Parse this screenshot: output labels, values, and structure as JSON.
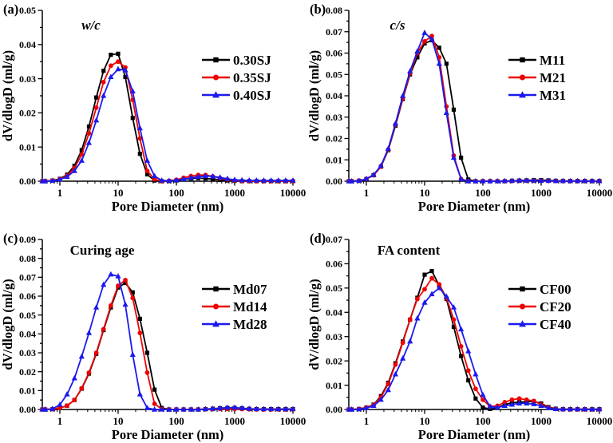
{
  "figure": {
    "background": "#ffffff",
    "xlabel": "Pore Diameter (nm)",
    "ylabel": "dV/dlogD (ml/g)"
  },
  "colors": {
    "series1": "#000000",
    "series2": "#ee0202",
    "series3": "#1a1aee",
    "axis": "#000000"
  },
  "chart_data": [
    {
      "panel_letter": "(a)",
      "type": "line",
      "title": "w/c",
      "title_italic": true,
      "xlabel": "Pore Diameter (nm)",
      "ylabel": "dV/dlogD (ml/g)",
      "xscale": "log",
      "xlim": [
        0.5,
        10000
      ],
      "ylim": [
        0,
        0.05
      ],
      "ytick_step": 0.01,
      "xticks": [
        1,
        10,
        100,
        1000,
        10000
      ],
      "grid": false,
      "legend_position": "right",
      "x": [
        0.5,
        0.56,
        0.75,
        1,
        1.33,
        1.78,
        2.37,
        3.16,
        4.22,
        5.62,
        7.5,
        10,
        13.3,
        17.8,
        23.7,
        31.6,
        42.2,
        56.2,
        75,
        100,
        133,
        178,
        237,
        316,
        422,
        562,
        750,
        1000,
        1334,
        1778,
        2371,
        3162,
        4217,
        5623,
        7499,
        10000
      ],
      "series": [
        {
          "name": "0.30SJ",
          "color": "#000000",
          "marker": "square",
          "y": [
            0,
            0,
            0.0002,
            0.0007,
            0.0019,
            0.0045,
            0.0091,
            0.016,
            0.0245,
            0.0323,
            0.037,
            0.0373,
            0.0305,
            0.0185,
            0.008,
            0.002,
            0.0002,
            0,
            0,
            0.0002,
            0.0005,
            0.0008,
            0.0009,
            0.0008,
            0.0006,
            0.0004,
            0.0002,
            0.0001,
            0,
            0,
            0,
            0,
            0,
            0,
            0,
            0
          ]
        },
        {
          "name": "0.35SJ",
          "color": "#ee0202",
          "marker": "circle",
          "y": [
            0,
            0,
            0.0002,
            0.0006,
            0.0016,
            0.0038,
            0.0078,
            0.014,
            0.0215,
            0.029,
            0.0338,
            0.035,
            0.0333,
            0.0238,
            0.0125,
            0.003,
            0.0006,
            0,
            0.0001,
            0.0004,
            0.001,
            0.0015,
            0.0018,
            0.0018,
            0.0014,
            0.0009,
            0.0005,
            0.0002,
            0.0001,
            0,
            0,
            0,
            0,
            0,
            0,
            0
          ]
        },
        {
          "name": "0.40SJ",
          "color": "#1a1aee",
          "marker": "triangle",
          "y": [
            0,
            0,
            0.0001,
            0.0005,
            0.0013,
            0.003,
            0.006,
            0.0112,
            0.0178,
            0.025,
            0.0305,
            0.0328,
            0.0325,
            0.0263,
            0.0155,
            0.006,
            0.0015,
            0.0002,
            0.0001,
            0.0003,
            0.0006,
            0.001,
            0.0013,
            0.0015,
            0.0014,
            0.0011,
            0.0007,
            0.0004,
            0.0003,
            0.0002,
            0.0002,
            0.0002,
            0.0002,
            0.0002,
            0.0002,
            0.0002
          ]
        }
      ]
    },
    {
      "panel_letter": "(b)",
      "type": "line",
      "title": "c/s",
      "title_italic": true,
      "xlabel": "Pore Diameter (nm)",
      "ylabel": "dV/dlogD (ml/g)",
      "xscale": "log",
      "xlim": [
        0.5,
        10000
      ],
      "ylim": [
        0,
        0.08
      ],
      "ytick_step": 0.01,
      "xticks": [
        1,
        10,
        100,
        1000,
        10000
      ],
      "grid": false,
      "legend_position": "right",
      "x": [
        0.5,
        0.56,
        0.75,
        1,
        1.33,
        1.78,
        2.37,
        3.16,
        4.22,
        5.62,
        7.5,
        10,
        13.3,
        17.8,
        23.7,
        31.6,
        42.2,
        56.2,
        75,
        100,
        133,
        178,
        237,
        316,
        422,
        562,
        750,
        1000,
        1334,
        1778,
        2371,
        3162,
        4217,
        5623,
        7499,
        10000
      ],
      "series": [
        {
          "name": "M11",
          "color": "#000000",
          "marker": "square",
          "y": [
            0,
            0,
            0.0002,
            0.001,
            0.0028,
            0.0068,
            0.0145,
            0.026,
            0.0385,
            0.05,
            0.058,
            0.0645,
            0.066,
            0.0625,
            0.055,
            0.0335,
            0.011,
            0.0008,
            0,
            0,
            0,
            0,
            0,
            0.0002,
            0.0003,
            0.0004,
            0.0005,
            0.0005,
            0.0004,
            0.0002,
            0.0001,
            0.0001,
            0.0001,
            0.0001,
            0.0001,
            0.0001
          ]
        },
        {
          "name": "M21",
          "color": "#ee0202",
          "marker": "circle",
          "y": [
            0,
            0,
            0.0002,
            0.001,
            0.0028,
            0.0068,
            0.0148,
            0.0265,
            0.039,
            0.0505,
            0.06,
            0.0655,
            0.068,
            0.058,
            0.035,
            0.012,
            0.001,
            0,
            0,
            0,
            0,
            0,
            0,
            0.0001,
            0.0002,
            0.0002,
            0.0002,
            0.0002,
            0.0001,
            0.0001,
            0,
            0,
            0,
            0,
            0,
            0
          ]
        },
        {
          "name": "M31",
          "color": "#1a1aee",
          "marker": "triangle",
          "y": [
            0,
            0,
            0.0002,
            0.0011,
            0.003,
            0.0072,
            0.0152,
            0.027,
            0.04,
            0.0515,
            0.0608,
            0.0695,
            0.0665,
            0.055,
            0.032,
            0.011,
            0.001,
            0,
            0,
            0,
            0,
            0,
            0.0001,
            0.0002,
            0.0003,
            0.0003,
            0.0003,
            0.0002,
            0.0002,
            0.0001,
            0.0001,
            0.0001,
            0.0001,
            0.0001,
            0.0001,
            0.0001
          ]
        }
      ]
    },
    {
      "panel_letter": "(c)",
      "type": "line",
      "title": "Curing age",
      "title_italic": false,
      "xlabel": "Pore Diameter (nm)",
      "ylabel": "dV/dlogD (ml/g)",
      "xscale": "log",
      "xlim": [
        0.5,
        10000
      ],
      "ylim": [
        0,
        0.09
      ],
      "ytick_step": 0.01,
      "xticks": [
        1,
        10,
        100,
        1000,
        10000
      ],
      "grid": false,
      "legend_position": "right",
      "x": [
        0.5,
        0.56,
        0.75,
        1,
        1.33,
        1.78,
        2.37,
        3.16,
        4.22,
        5.62,
        7.5,
        10,
        13.3,
        17.8,
        23.7,
        31.6,
        42.2,
        56.2,
        75,
        100,
        133,
        178,
        237,
        316,
        422,
        562,
        750,
        1000,
        1334,
        1778,
        2371,
        3162,
        4217,
        5623,
        7499,
        10000
      ],
      "series": [
        {
          "name": "Md07",
          "color": "#000000",
          "marker": "square",
          "y": [
            0,
            0,
            0.0002,
            0.0008,
            0.002,
            0.005,
            0.011,
            0.019,
            0.0295,
            0.042,
            0.054,
            0.0645,
            0.067,
            0.062,
            0.048,
            0.03,
            0.0105,
            0.0008,
            0,
            0,
            0,
            0,
            0,
            0.0002,
            0.0004,
            0.0006,
            0.0008,
            0.0008,
            0.0006,
            0.0003,
            0.0002,
            0.0002,
            0.0002,
            0.0002,
            0.0002,
            0.0002
          ]
        },
        {
          "name": "Md14",
          "color": "#ee0202",
          "marker": "circle",
          "y": [
            0,
            0,
            0.0002,
            0.0008,
            0.002,
            0.005,
            0.0112,
            0.0195,
            0.03,
            0.0425,
            0.055,
            0.0655,
            0.0685,
            0.059,
            0.0405,
            0.0195,
            0.003,
            0.0002,
            0,
            0,
            0,
            0,
            0,
            0.0001,
            0.0002,
            0.0003,
            0.0003,
            0.0003,
            0.0002,
            0.0001,
            0,
            0,
            0,
            0,
            0,
            0
          ]
        },
        {
          "name": "Md28",
          "color": "#1a1aee",
          "marker": "triangle",
          "y": [
            0,
            0,
            0.0003,
            0.0025,
            0.008,
            0.0165,
            0.028,
            0.0405,
            0.054,
            0.066,
            0.0715,
            0.0705,
            0.0555,
            0.029,
            0.008,
            0.0008,
            0,
            0,
            0,
            0,
            0,
            0,
            0,
            0.0002,
            0.0004,
            0.0007,
            0.001,
            0.001,
            0.0007,
            0.0004,
            0.0002,
            0.0002,
            0.0002,
            0.0002,
            0.0002,
            0.0002
          ]
        }
      ]
    },
    {
      "panel_letter": "(d)",
      "type": "line",
      "title": "FA content",
      "title_italic": false,
      "xlabel": "Pore Diameter (nm)",
      "ylabel": "dV/dlogD (ml/g)",
      "xscale": "log",
      "xlim": [
        0.5,
        10000
      ],
      "ylim": [
        0,
        0.07
      ],
      "ytick_step": 0.01,
      "xticks": [
        1,
        10,
        100,
        1000,
        10000
      ],
      "grid": false,
      "legend_position": "right",
      "x": [
        0.5,
        0.56,
        0.75,
        1,
        1.33,
        1.78,
        2.37,
        3.16,
        4.22,
        5.62,
        7.5,
        10,
        13.3,
        17.8,
        23.7,
        31.6,
        42.2,
        56.2,
        75,
        100,
        133,
        178,
        237,
        316,
        422,
        562,
        750,
        1000,
        1334,
        1778,
        2371,
        3162,
        4217,
        5623,
        7499,
        10000
      ],
      "series": [
        {
          "name": "CF00",
          "color": "#000000",
          "marker": "square",
          "y": [
            0,
            0,
            0.0002,
            0.0008,
            0.002,
            0.0055,
            0.011,
            0.019,
            0.028,
            0.037,
            0.046,
            0.0555,
            0.057,
            0.051,
            0.0455,
            0.034,
            0.022,
            0.012,
            0.0045,
            0.0008,
            0.0002,
            0.0008,
            0.002,
            0.0028,
            0.003,
            0.0032,
            0.0033,
            0.0025,
            0.001,
            0.0003,
            0.0001,
            0.0001,
            0.0001,
            0.0001,
            0.0001,
            0.0001
          ]
        },
        {
          "name": "CF20",
          "color": "#ee0202",
          "marker": "circle",
          "y": [
            0,
            0,
            0.0002,
            0.0008,
            0.0018,
            0.005,
            0.0105,
            0.0185,
            0.0275,
            0.037,
            0.0455,
            0.0495,
            0.054,
            0.0515,
            0.046,
            0.037,
            0.026,
            0.016,
            0.0085,
            0.004,
            0.0012,
            0.0015,
            0.003,
            0.004,
            0.0045,
            0.004,
            0.0035,
            0.002,
            0.0008,
            0.0002,
            0,
            0,
            0,
            0,
            0,
            0
          ]
        },
        {
          "name": "CF40",
          "color": "#1a1aee",
          "marker": "triangle",
          "y": [
            0,
            0,
            0.0001,
            0.0006,
            0.0015,
            0.004,
            0.008,
            0.0145,
            0.021,
            0.028,
            0.0375,
            0.044,
            0.0475,
            0.05,
            0.0465,
            0.042,
            0.033,
            0.024,
            0.0145,
            0.006,
            0.0012,
            0.0008,
            0.0015,
            0.002,
            0.0025,
            0.0025,
            0.0022,
            0.0015,
            0.0006,
            0.0002,
            0.0001,
            0.0001,
            0.0001,
            0.0001,
            0.0001,
            0.0001
          ]
        }
      ]
    }
  ]
}
